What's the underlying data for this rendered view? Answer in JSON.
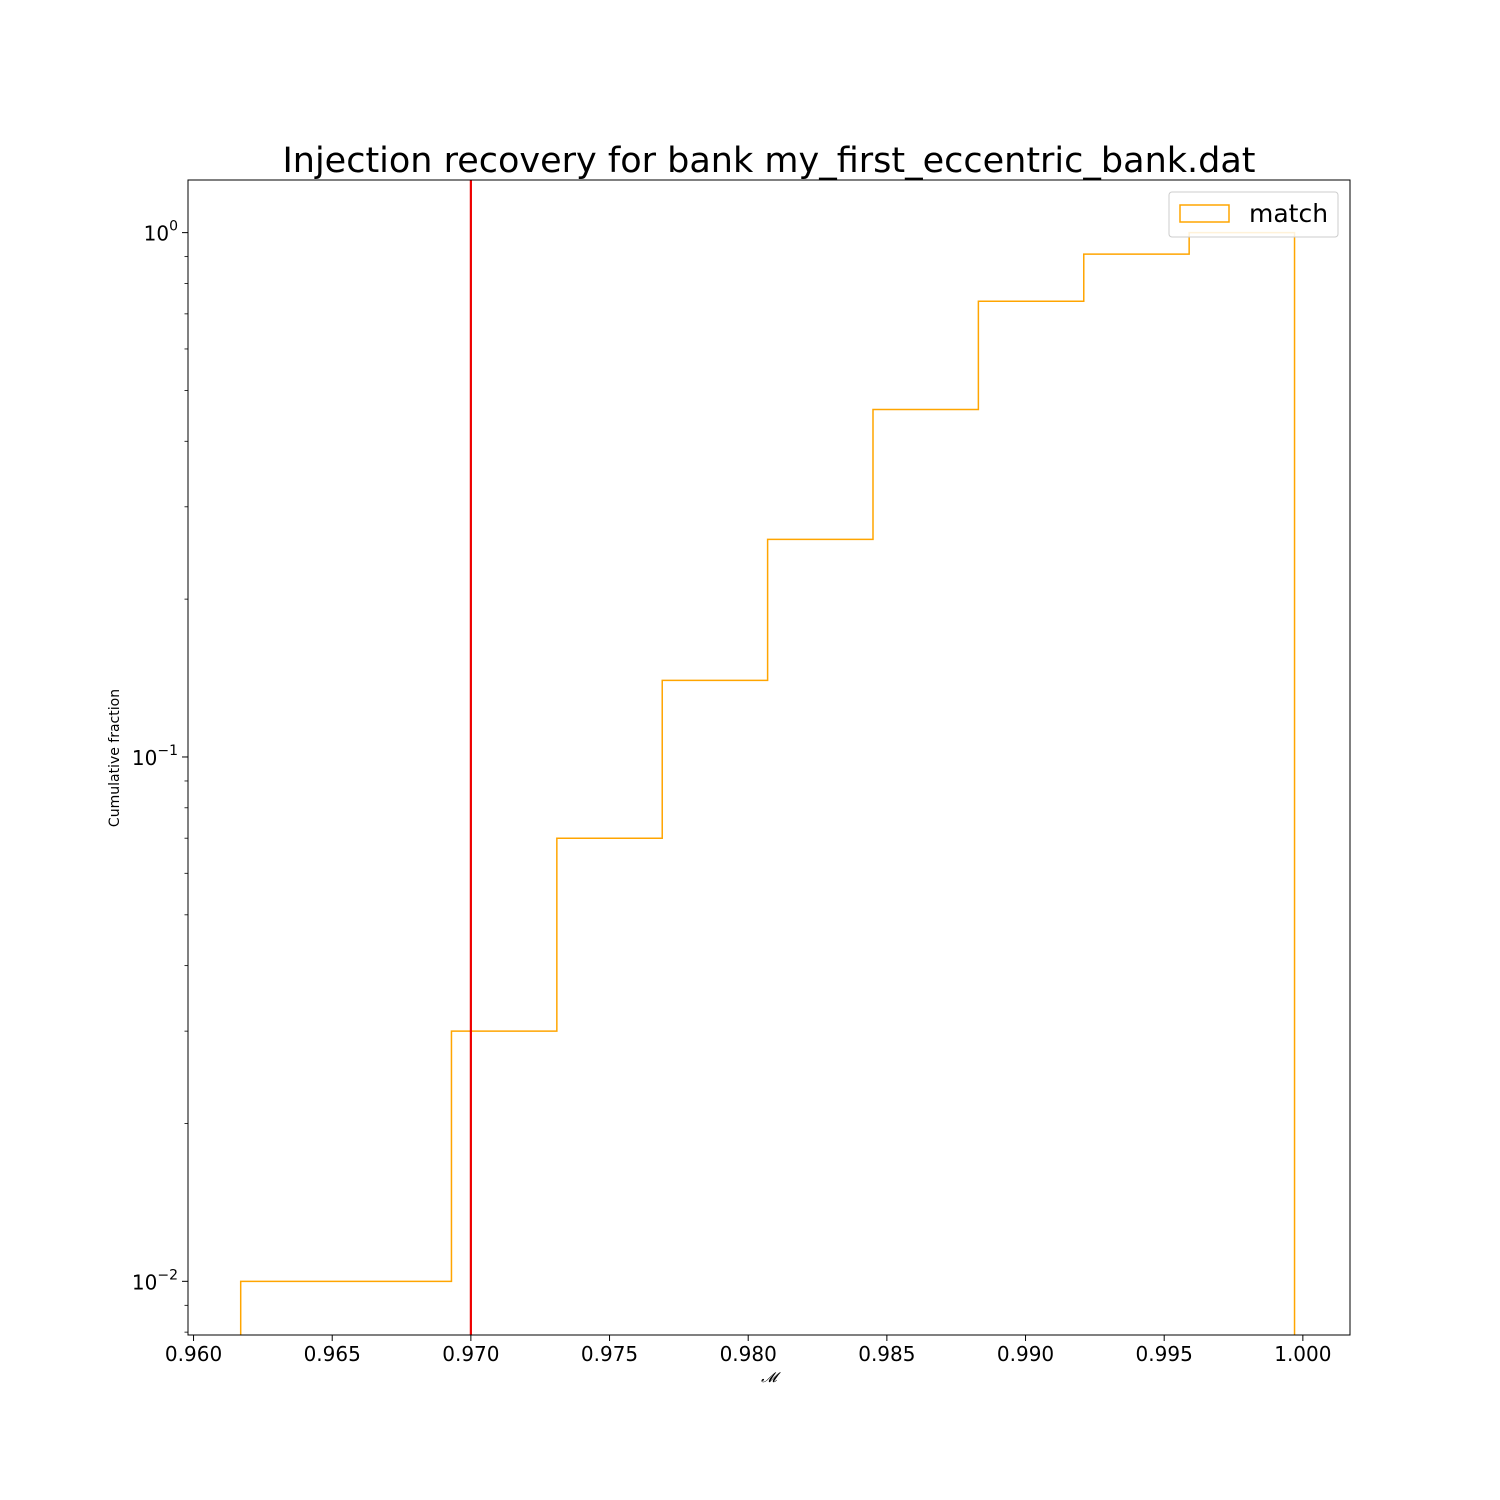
{
  "chart_data": {
    "type": "histogram",
    "title": "Injection recovery for bank my_first_eccentric_bank.dat",
    "xlabel": "𝓜",
    "ylabel": "Cumulative fraction",
    "xlim": [
      0.9598,
      1.0017
    ],
    "ylim": [
      0.0079,
      1.26
    ],
    "yscale": "log",
    "x_ticks": [
      0.96,
      0.965,
      0.97,
      0.975,
      0.98,
      0.985,
      0.99,
      0.995,
      1.0
    ],
    "x_tick_labels": [
      "0.960",
      "0.965",
      "0.970",
      "0.975",
      "0.980",
      "0.985",
      "0.990",
      "0.995",
      "1.000"
    ],
    "y_ticks": [
      0.01,
      0.1,
      1
    ],
    "y_tick_labels": [
      {
        "base": "10",
        "exp": "−2"
      },
      {
        "base": "10",
        "exp": "−1"
      },
      {
        "base": "10",
        "exp": "0"
      }
    ],
    "series": [
      {
        "name": "match",
        "color": "#ffa500",
        "histtype": "step",
        "cumulative": true,
        "bin_edges": [
          0.9617,
          0.9655,
          0.9693,
          0.9731,
          0.9769,
          0.9807,
          0.9845,
          0.9883,
          0.9921,
          0.9959,
          0.9997
        ],
        "values": [
          0.01,
          0.01,
          0.03,
          0.07,
          0.14,
          0.26,
          0.46,
          0.74,
          0.91,
          1.0
        ]
      }
    ],
    "reference_line": {
      "x": 0.97,
      "color": "#ee0000"
    },
    "legend": {
      "position": "top-right"
    },
    "grid": false
  }
}
